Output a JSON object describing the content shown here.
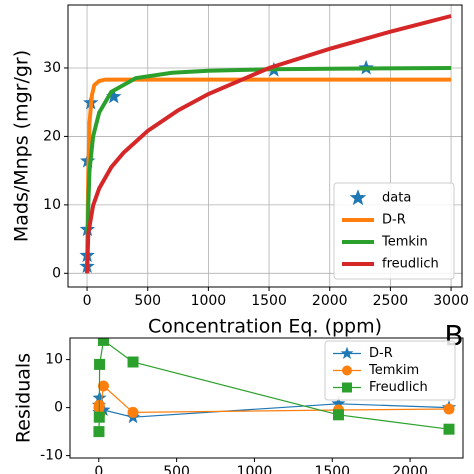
{
  "chart_data": [
    {
      "type": "line",
      "x_label": "Concentration Eq. (ppm)",
      "y_label": "Mads/Mnps (mgr/gr)",
      "panel_label": "B",
      "xlim": [
        -157,
        3090
      ],
      "ylim": [
        -2,
        39.2
      ],
      "xticks": [
        0,
        500,
        1000,
        1500,
        2000,
        2500,
        3000
      ],
      "yticks": [
        0,
        10,
        20,
        30
      ],
      "grid": true,
      "legend": "lower right",
      "series": [
        {
          "name": "data",
          "color": "#1f77b4",
          "marker": "star",
          "line": false,
          "x": [
            0.5,
            1,
            3,
            5,
            30,
            220,
            1540,
            2300
          ],
          "values": [
            1,
            2.6,
            6.4,
            16.4,
            24.9,
            25.8,
            29.7,
            30
          ]
        },
        {
          "name": "D-R",
          "color": "#ff7f0e",
          "line": true,
          "x": [
            0,
            5,
            10,
            20,
            40,
            60,
            100,
            150,
            200,
            300,
            3000
          ],
          "values": [
            0,
            8,
            15,
            22,
            26,
            27.5,
            28.1,
            28.3,
            28.3,
            28.3,
            28.3
          ]
        },
        {
          "name": "Temkin",
          "color": "#2ca02c",
          "line": true,
          "x": [
            0,
            5,
            10,
            20,
            50,
            100,
            200,
            400,
            700,
            1000,
            1500,
            2000,
            3000
          ],
          "values": [
            0,
            5,
            10,
            15,
            20,
            23.5,
            26.5,
            28.5,
            29.3,
            29.6,
            29.8,
            29.9,
            30
          ]
        },
        {
          "name": "freudlich",
          "color": "#d62728",
          "line": true,
          "x": [
            0,
            10,
            50,
            100,
            200,
            300,
            500,
            750,
            1000,
            1500,
            2000,
            2500,
            3000
          ],
          "values": [
            0,
            5.8,
            9.9,
            12.4,
            15.5,
            17.6,
            20.8,
            23.8,
            26.2,
            30,
            32.8,
            35.3,
            37.6
          ]
        }
      ]
    },
    {
      "type": "line",
      "y_label": "Residuals",
      "xlim": [
        -185,
        2340
      ],
      "ylim": [
        -10.5,
        14.5
      ],
      "xticks": [
        0,
        500,
        1000,
        1500,
        2000
      ],
      "yticks": [
        -10,
        0,
        10
      ],
      "grid": false,
      "legend": "upper right",
      "series": [
        {
          "name": "D-R",
          "color": "#1f77b4",
          "marker": "star",
          "line": true,
          "x": [
            1,
            3,
            5,
            30,
            220,
            1540,
            2250
          ],
          "values": [
            0.5,
            -1,
            2,
            -0.5,
            -2,
            0.8,
            0
          ]
        },
        {
          "name": "Temkim",
          "color": "#ff7f0e",
          "marker": "circle",
          "line": true,
          "x": [
            1,
            3,
            5,
            30,
            220,
            1540,
            2250
          ],
          "values": [
            0,
            0.5,
            -1.5,
            4.5,
            -1,
            -0.5,
            -0.3
          ]
        },
        {
          "name": "Freudlich",
          "color": "#2ca02c",
          "marker": "square",
          "line": true,
          "x": [
            1,
            3,
            5,
            30,
            220,
            1540,
            2250
          ],
          "values": [
            -5,
            -2,
            9,
            14,
            9.5,
            -1.5,
            -4.5
          ]
        }
      ]
    }
  ]
}
